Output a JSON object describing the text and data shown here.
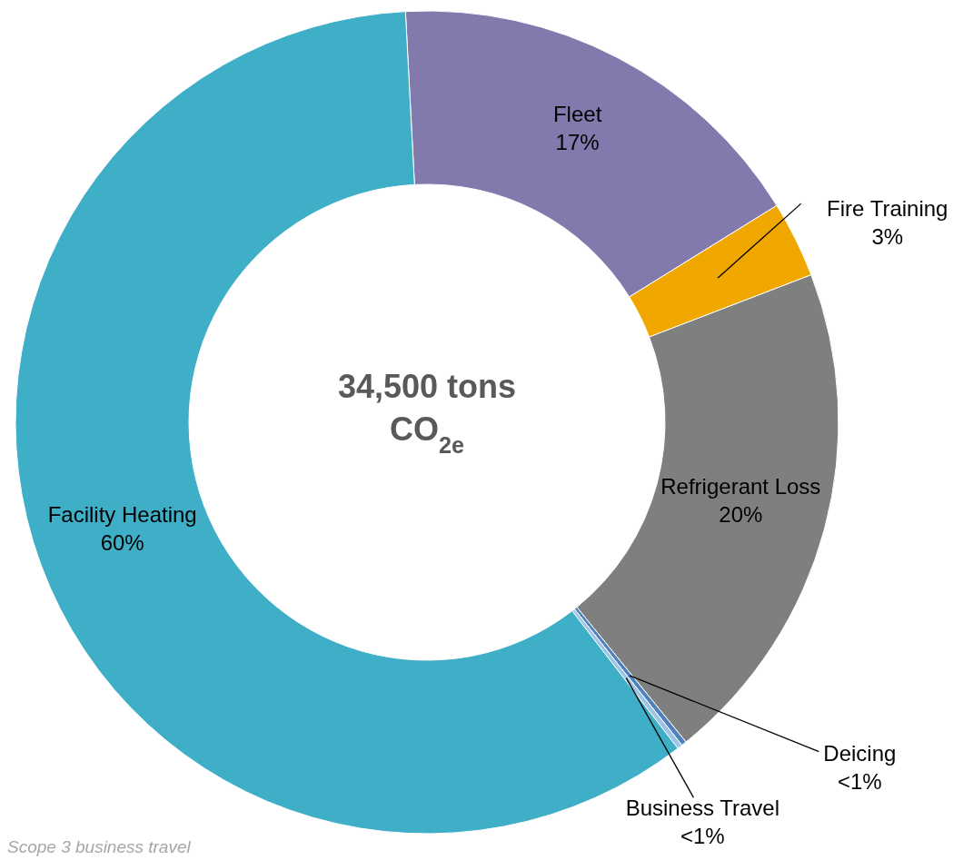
{
  "chart_data": {
    "type": "donut",
    "title": "34,500 tons CO$_{2e}$",
    "categories": [
      "Fleet",
      "Fire Training",
      "Refrigerant Loss",
      "Deicing",
      "Business Travel",
      "Facility Heating"
    ],
    "values": [
      17,
      3,
      20,
      0.2,
      0.2,
      59.6
    ],
    "value_labels": [
      "17%",
      "3%",
      "20%",
      "<1%",
      "<1%",
      "60%"
    ],
    "colors": [
      "#8279ad",
      "#f0a800",
      "#7f7f7f",
      "#4f81bd",
      "#9dc3e6",
      "#3faec7"
    ],
    "annotations": [
      "Scope 3 business travel"
    ]
  }
}
